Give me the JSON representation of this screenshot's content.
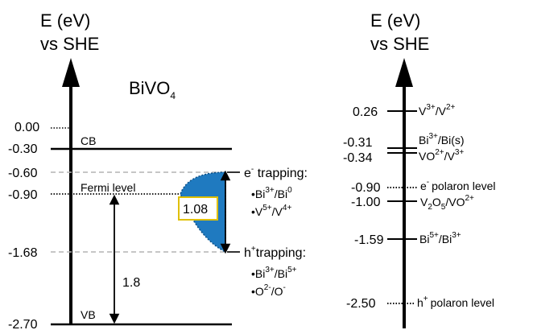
{
  "left_panel": {
    "axis_title_line1": "E (eV)",
    "axis_title_line2": "vs SHE",
    "material": {
      "base": "BiVO",
      "subscript": "4"
    },
    "levels": [
      {
        "value": "0.00"
      },
      {
        "value": "-0.30",
        "label": "CB"
      },
      {
        "value": "-0.60"
      },
      {
        "value": "-0.90",
        "label": "Fermi level"
      },
      {
        "value": "-1.68"
      },
      {
        "value": "-2.70",
        "label": "VB"
      }
    ],
    "gap_label": "1.08",
    "fermi_to_vb_label": "1.8",
    "e_trapping": {
      "prefix": "e",
      "prefix_sup": "-",
      "title": " trapping:",
      "items": [
        {
          "bullet": "•",
          "a": "Bi",
          "a_sup": "3+",
          "sep": "/",
          "b": "Bi",
          "b_sup": "0"
        },
        {
          "bullet": "•",
          "a": "V",
          "a_sup": "5+",
          "sep": "/",
          "b": "V",
          "b_sup": "4+"
        }
      ]
    },
    "h_trapping": {
      "prefix": "h",
      "prefix_sup": "+",
      "title": "trapping:",
      "items": [
        {
          "bullet": "•",
          "a": "Bi",
          "a_sup": "3+",
          "sep": "/",
          "b": "Bi",
          "b_sup": "5+"
        },
        {
          "bullet": "•",
          "a": "O",
          "a_sup": "2-",
          "sep": "/",
          "b": "O",
          "b_sup": "-"
        }
      ]
    }
  },
  "right_panel": {
    "axis_title_line1": "E (eV)",
    "axis_title_line2": "vs SHE",
    "levels": [
      {
        "value": "0.26"
      },
      {
        "value": "-0.31"
      },
      {
        "value": "-0.34"
      },
      {
        "value": "-0.90"
      },
      {
        "value": "-1.00"
      },
      {
        "value": "-1.59"
      },
      {
        "value": "-2.50"
      }
    ],
    "couples": {
      "v3_v2": {
        "a": "V",
        "a_sup": "3+",
        "sep": "/",
        "b": "V",
        "b_sup": "2+"
      },
      "bi3_bis": {
        "a": "Bi",
        "a_sup": "3+",
        "rest": "/Bi(s)"
      },
      "vo2_v3": {
        "a": "VO",
        "a_sup": "2+",
        "sep": "/",
        "b": "V",
        "b_sup": "3+"
      },
      "e_polaron": {
        "a": "e",
        "a_sup": "-",
        "rest": "polaron level"
      },
      "v2o5_vo2": {
        "a": "V",
        "a_sub": "2",
        "mid": "O",
        "mid_sub": "5",
        "sep": "/VO",
        "b_sup": "2+"
      },
      "bi5_bi3": {
        "a": "Bi",
        "a_sup": "5+",
        "sep": "/",
        "b": "Bi",
        "b_sup": "3+"
      },
      "h_polaron": {
        "a": "h",
        "a_sup": "+",
        "rest": "polaron level"
      }
    }
  },
  "colors": {
    "trap_fill": "#1f7ac0",
    "trap_edge": "#0d4f86",
    "dashed": "#b3b3b3"
  }
}
